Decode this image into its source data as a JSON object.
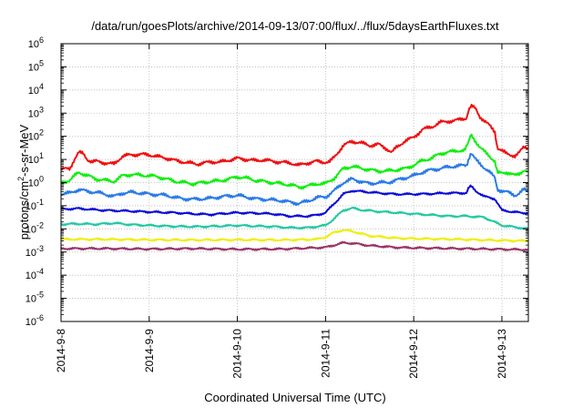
{
  "chart_data": {
    "type": "line",
    "title": "/data/run/goesPlots/archive/2014-09-13/07:00/flux/../flux/5daysEarthFluxes.txt",
    "xlabel": "Coordinated Universal Time (UTC)",
    "ylabel": {
      "prefix": "protons/cm",
      "sup": "2",
      "suffix": "-s-sr-MeV"
    },
    "x_unit": "days since 2014-09-08 00:00 UTC",
    "xlim": [
      0,
      5.3
    ],
    "x_ticks": [
      {
        "x": 0,
        "label": "2014-9-8"
      },
      {
        "x": 1,
        "label": "2014-9-9"
      },
      {
        "x": 2,
        "label": "2014-9-10"
      },
      {
        "x": 3,
        "label": "2014-9-11"
      },
      {
        "x": 4,
        "label": "2014-9-12"
      },
      {
        "x": 5,
        "label": "2014-9-13"
      }
    ],
    "y_scale": "log",
    "ylim": [
      1e-06,
      1000000.0
    ],
    "y_ticks": [
      {
        "exp": -6,
        "label": "10",
        "sup": "-6"
      },
      {
        "exp": -5,
        "label": "10",
        "sup": "-5"
      },
      {
        "exp": -4,
        "label": "10",
        "sup": "-4"
      },
      {
        "exp": -3,
        "label": "10",
        "sup": "-3"
      },
      {
        "exp": -2,
        "label": "10",
        "sup": "-2"
      },
      {
        "exp": -1,
        "label": "10",
        "sup": "-1"
      },
      {
        "exp": 0,
        "label": "10",
        "sup": "0"
      },
      {
        "exp": 1,
        "label": "10",
        "sup": "1"
      },
      {
        "exp": 2,
        "label": "10",
        "sup": "2"
      },
      {
        "exp": 3,
        "label": "10",
        "sup": "3"
      },
      {
        "exp": 4,
        "label": "10",
        "sup": "4"
      },
      {
        "exp": 5,
        "label": "10",
        "sup": "5"
      },
      {
        "exp": 6,
        "label": "10",
        "sup": "6"
      }
    ],
    "grid": true,
    "series": [
      {
        "color": "#ee1111",
        "log10": [
          [
            0,
            0.58
          ],
          [
            0.1,
            0.6
          ],
          [
            0.15,
            1.0
          ],
          [
            0.2,
            1.3
          ],
          [
            0.25,
            1.25
          ],
          [
            0.3,
            1.0
          ],
          [
            0.35,
            0.9
          ],
          [
            0.4,
            0.92
          ],
          [
            0.5,
            0.85
          ],
          [
            0.6,
            0.8
          ],
          [
            0.7,
            1.15
          ],
          [
            0.8,
            1.2
          ],
          [
            0.9,
            1.22
          ],
          [
            1.0,
            1.2
          ],
          [
            1.1,
            1.12
          ],
          [
            1.2,
            1.05
          ],
          [
            1.3,
            0.95
          ],
          [
            1.45,
            0.85
          ],
          [
            1.55,
            0.8
          ],
          [
            1.7,
            0.9
          ],
          [
            1.8,
            0.88
          ],
          [
            2.0,
            1.05
          ],
          [
            2.1,
            1.0
          ],
          [
            2.2,
            0.95
          ],
          [
            2.3,
            0.98
          ],
          [
            2.4,
            0.92
          ],
          [
            2.5,
            0.88
          ],
          [
            2.6,
            0.85
          ],
          [
            2.7,
            0.75
          ],
          [
            2.8,
            0.85
          ],
          [
            2.9,
            0.92
          ],
          [
            3.0,
            0.88
          ],
          [
            3.05,
            0.9
          ],
          [
            3.1,
            1.1
          ],
          [
            3.2,
            1.6
          ],
          [
            3.3,
            1.78
          ],
          [
            3.4,
            1.72
          ],
          [
            3.5,
            1.6
          ],
          [
            3.6,
            1.65
          ],
          [
            3.7,
            1.45
          ],
          [
            3.75,
            1.3
          ],
          [
            3.8,
            1.5
          ],
          [
            3.9,
            1.8
          ],
          [
            4.0,
            1.95
          ],
          [
            4.1,
            2.3
          ],
          [
            4.2,
            2.4
          ],
          [
            4.3,
            2.6
          ],
          [
            4.4,
            2.65
          ],
          [
            4.5,
            2.7
          ],
          [
            4.6,
            2.8
          ],
          [
            4.62,
            3.1
          ],
          [
            4.65,
            3.3
          ],
          [
            4.7,
            3.2
          ],
          [
            4.75,
            2.85
          ],
          [
            4.85,
            2.5
          ],
          [
            4.92,
            2.2
          ],
          [
            4.95,
            1.5
          ],
          [
            5.05,
            1.25
          ],
          [
            5.15,
            1.15
          ],
          [
            5.2,
            1.3
          ],
          [
            5.25,
            1.55
          ],
          [
            5.3,
            1.5
          ]
        ]
      },
      {
        "color": "#11ee11",
        "log10": [
          [
            0,
            0.0
          ],
          [
            0.1,
            0.1
          ],
          [
            0.2,
            0.45
          ],
          [
            0.3,
            0.3
          ],
          [
            0.4,
            0.15
          ],
          [
            0.5,
            0.1
          ],
          [
            0.6,
            0.05
          ],
          [
            0.7,
            0.3
          ],
          [
            0.8,
            0.35
          ],
          [
            0.9,
            0.32
          ],
          [
            1.0,
            0.3
          ],
          [
            1.1,
            0.25
          ],
          [
            1.2,
            0.15
          ],
          [
            1.3,
            0.05
          ],
          [
            1.4,
            0.0
          ],
          [
            1.5,
            -0.05
          ],
          [
            1.6,
            0.0
          ],
          [
            1.7,
            0.05
          ],
          [
            1.8,
            0.08
          ],
          [
            1.9,
            0.15
          ],
          [
            2.0,
            0.25
          ],
          [
            2.1,
            0.2
          ],
          [
            2.2,
            0.1
          ],
          [
            2.3,
            0.05
          ],
          [
            2.4,
            0.0
          ],
          [
            2.5,
            -0.05
          ],
          [
            2.6,
            -0.1
          ],
          [
            2.7,
            -0.2
          ],
          [
            2.8,
            -0.15
          ],
          [
            2.9,
            -0.05
          ],
          [
            3.0,
            -0.05
          ],
          [
            3.1,
            0.2
          ],
          [
            3.2,
            0.6
          ],
          [
            3.3,
            0.7
          ],
          [
            3.4,
            0.62
          ],
          [
            3.5,
            0.55
          ],
          [
            3.6,
            0.5
          ],
          [
            3.7,
            0.5
          ],
          [
            3.8,
            0.55
          ],
          [
            3.9,
            0.6
          ],
          [
            4.0,
            0.75
          ],
          [
            4.1,
            0.95
          ],
          [
            4.2,
            1.05
          ],
          [
            4.3,
            1.25
          ],
          [
            4.4,
            1.32
          ],
          [
            4.5,
            1.38
          ],
          [
            4.58,
            1.4
          ],
          [
            4.62,
            1.7
          ],
          [
            4.65,
            2.1
          ],
          [
            4.7,
            1.8
          ],
          [
            4.75,
            1.5
          ],
          [
            4.85,
            1.2
          ],
          [
            4.92,
            0.9
          ],
          [
            4.95,
            0.4
          ],
          [
            5.05,
            0.45
          ],
          [
            5.15,
            0.3
          ],
          [
            5.2,
            0.4
          ],
          [
            5.25,
            0.55
          ],
          [
            5.3,
            0.45
          ]
        ]
      },
      {
        "color": "#2a7be6",
        "log10": [
          [
            0,
            -0.5
          ],
          [
            0.1,
            -0.45
          ],
          [
            0.2,
            -0.3
          ],
          [
            0.3,
            -0.38
          ],
          [
            0.4,
            -0.42
          ],
          [
            0.5,
            -0.5
          ],
          [
            0.6,
            -0.6
          ],
          [
            0.7,
            -0.45
          ],
          [
            0.8,
            -0.42
          ],
          [
            0.9,
            -0.45
          ],
          [
            1.0,
            -0.5
          ],
          [
            1.1,
            -0.52
          ],
          [
            1.2,
            -0.55
          ],
          [
            1.3,
            -0.65
          ],
          [
            1.4,
            -0.7
          ],
          [
            1.5,
            -0.72
          ],
          [
            1.6,
            -0.7
          ],
          [
            1.7,
            -0.68
          ],
          [
            1.8,
            -0.62
          ],
          [
            1.9,
            -0.58
          ],
          [
            2.0,
            -0.55
          ],
          [
            2.1,
            -0.62
          ],
          [
            2.2,
            -0.7
          ],
          [
            2.3,
            -0.72
          ],
          [
            2.4,
            -0.75
          ],
          [
            2.5,
            -0.78
          ],
          [
            2.6,
            -0.85
          ],
          [
            2.7,
            -0.9
          ],
          [
            2.8,
            -0.8
          ],
          [
            2.9,
            -0.65
          ],
          [
            3.0,
            -0.62
          ],
          [
            3.1,
            -0.35
          ],
          [
            3.2,
            0.0
          ],
          [
            3.3,
            0.15
          ],
          [
            3.4,
            0.05
          ],
          [
            3.5,
            -0.05
          ],
          [
            3.6,
            0.0
          ],
          [
            3.7,
            0.0
          ],
          [
            3.8,
            0.1
          ],
          [
            3.9,
            0.2
          ],
          [
            4.0,
            0.3
          ],
          [
            4.1,
            0.45
          ],
          [
            4.2,
            0.55
          ],
          [
            4.3,
            0.6
          ],
          [
            4.4,
            0.68
          ],
          [
            4.5,
            0.72
          ],
          [
            4.6,
            0.75
          ],
          [
            4.62,
            1.0
          ],
          [
            4.65,
            1.3
          ],
          [
            4.7,
            1.0
          ],
          [
            4.75,
            0.8
          ],
          [
            4.85,
            0.5
          ],
          [
            4.92,
            0.2
          ],
          [
            4.95,
            -0.3
          ],
          [
            5.05,
            -0.4
          ],
          [
            5.15,
            -0.55
          ],
          [
            5.2,
            -0.45
          ],
          [
            5.25,
            -0.3
          ],
          [
            5.3,
            -0.4
          ]
        ]
      },
      {
        "color": "#0a0ad8",
        "log10": [
          [
            0,
            -1.15
          ],
          [
            0.2,
            -1.12
          ],
          [
            0.3,
            -1.15
          ],
          [
            0.5,
            -1.2
          ],
          [
            0.7,
            -1.22
          ],
          [
            0.9,
            -1.25
          ],
          [
            1.1,
            -1.28
          ],
          [
            1.3,
            -1.3
          ],
          [
            1.5,
            -1.35
          ],
          [
            1.7,
            -1.38
          ],
          [
            1.9,
            -1.32
          ],
          [
            2.0,
            -1.3
          ],
          [
            2.2,
            -1.32
          ],
          [
            2.4,
            -1.35
          ],
          [
            2.6,
            -1.45
          ],
          [
            2.8,
            -1.45
          ],
          [
            2.9,
            -1.4
          ],
          [
            3.0,
            -1.3
          ],
          [
            3.1,
            -0.9
          ],
          [
            3.2,
            -0.5
          ],
          [
            3.3,
            -0.35
          ],
          [
            3.4,
            -0.38
          ],
          [
            3.6,
            -0.45
          ],
          [
            3.8,
            -0.5
          ],
          [
            4.0,
            -0.5
          ],
          [
            4.2,
            -0.48
          ],
          [
            4.4,
            -0.45
          ],
          [
            4.6,
            -0.45
          ],
          [
            4.62,
            -0.25
          ],
          [
            4.65,
            -0.15
          ],
          [
            4.7,
            -0.35
          ],
          [
            4.8,
            -0.6
          ],
          [
            4.92,
            -0.7
          ],
          [
            5.0,
            -1.2
          ],
          [
            5.1,
            -1.25
          ],
          [
            5.2,
            -1.3
          ],
          [
            5.3,
            -1.32
          ]
        ]
      },
      {
        "color": "#22c8a0",
        "log10": [
          [
            0,
            -1.8
          ],
          [
            0.2,
            -1.78
          ],
          [
            0.4,
            -1.8
          ],
          [
            0.6,
            -1.75
          ],
          [
            0.8,
            -1.82
          ],
          [
            1.0,
            -1.85
          ],
          [
            1.2,
            -1.88
          ],
          [
            1.4,
            -1.9
          ],
          [
            1.6,
            -1.9
          ],
          [
            1.8,
            -1.88
          ],
          [
            2.0,
            -1.85
          ],
          [
            2.2,
            -1.88
          ],
          [
            2.4,
            -1.9
          ],
          [
            2.6,
            -1.95
          ],
          [
            2.8,
            -1.95
          ],
          [
            3.0,
            -1.85
          ],
          [
            3.1,
            -1.55
          ],
          [
            3.2,
            -1.2
          ],
          [
            3.3,
            -1.1
          ],
          [
            3.4,
            -1.18
          ],
          [
            3.6,
            -1.25
          ],
          [
            3.8,
            -1.3
          ],
          [
            4.0,
            -1.35
          ],
          [
            4.2,
            -1.4
          ],
          [
            4.4,
            -1.45
          ],
          [
            4.6,
            -1.45
          ],
          [
            4.8,
            -1.5
          ],
          [
            5.0,
            -1.85
          ],
          [
            5.1,
            -1.9
          ],
          [
            5.2,
            -1.95
          ],
          [
            5.3,
            -2.0
          ]
        ]
      },
      {
        "color": "#eeee11",
        "log10": [
          [
            0,
            -2.45
          ],
          [
            0.5,
            -2.45
          ],
          [
            1.0,
            -2.47
          ],
          [
            1.5,
            -2.48
          ],
          [
            2.0,
            -2.47
          ],
          [
            2.5,
            -2.48
          ],
          [
            2.9,
            -2.45
          ],
          [
            3.0,
            -2.35
          ],
          [
            3.1,
            -2.15
          ],
          [
            3.2,
            -2.05
          ],
          [
            3.3,
            -2.1
          ],
          [
            3.5,
            -2.3
          ],
          [
            3.8,
            -2.4
          ],
          [
            4.0,
            -2.42
          ],
          [
            4.5,
            -2.45
          ],
          [
            5.0,
            -2.5
          ],
          [
            5.3,
            -2.52
          ]
        ]
      },
      {
        "color": "#993366",
        "log10": [
          [
            0,
            -2.85
          ],
          [
            0.5,
            -2.85
          ],
          [
            1.0,
            -2.87
          ],
          [
            1.5,
            -2.85
          ],
          [
            2.0,
            -2.88
          ],
          [
            2.5,
            -2.87
          ],
          [
            3.0,
            -2.8
          ],
          [
            3.1,
            -2.7
          ],
          [
            3.2,
            -2.6
          ],
          [
            3.3,
            -2.62
          ],
          [
            3.5,
            -2.72
          ],
          [
            3.8,
            -2.8
          ],
          [
            4.0,
            -2.82
          ],
          [
            4.5,
            -2.85
          ],
          [
            5.0,
            -2.88
          ],
          [
            5.3,
            -2.9
          ]
        ]
      }
    ]
  }
}
